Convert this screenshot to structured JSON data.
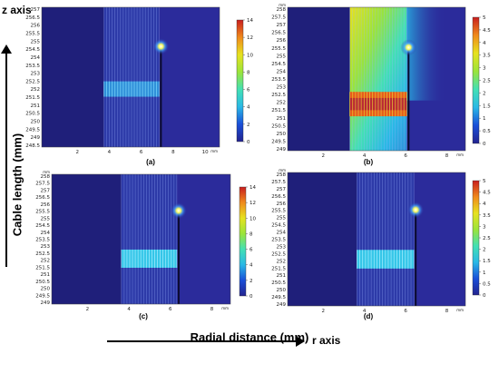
{
  "axes": {
    "z_axis_label": "z axis",
    "y_axis_label": "Cable length (mm)",
    "x_axis_label": "Radial distance (mm)",
    "r_axis_label": "r axis"
  },
  "colors": {
    "background": "#2b2b9b",
    "colormap": [
      "#23238f",
      "#1a4fd8",
      "#2ab8e6",
      "#43e0b4",
      "#9be43a",
      "#e6e21f",
      "#f08a1c",
      "#c81e1e"
    ]
  },
  "panels": [
    {
      "label": "(a)",
      "y_ticks": [
        "257",
        "256.5",
        "256",
        "255.5",
        "255",
        "254.5",
        "254",
        "253.5",
        "253",
        "252.5",
        "252",
        "251.5",
        "251",
        "250.5",
        "250",
        "249.5",
        "249",
        "248.5"
      ],
      "x_ticks": [
        "2",
        "4",
        "6",
        "8",
        "10"
      ],
      "x_unit": "mm",
      "y_unit": "",
      "colorbar_ticks": [
        "14",
        "12",
        "10",
        "8",
        "6",
        "4",
        "2",
        "0"
      ],
      "field": "slots-dim"
    },
    {
      "label": "(b)",
      "y_ticks": [
        "258",
        "257.5",
        "257",
        "256.5",
        "256",
        "255.5",
        "255",
        "254.5",
        "254",
        "253.5",
        "253",
        "252.5",
        "252",
        "251.5",
        "251",
        "250.5",
        "250",
        "249.5",
        "249"
      ],
      "x_ticks": [
        "2",
        "4",
        "6",
        "8"
      ],
      "x_unit": "mm",
      "y_unit": "mm",
      "colorbar_ticks": [
        "5",
        "4.5",
        "4",
        "3.5",
        "3",
        "2.5",
        "2",
        "1.5",
        "1",
        "0.5",
        "0"
      ],
      "field": "gradient"
    },
    {
      "label": "(c)",
      "y_ticks": [
        "258",
        "257.5",
        "257",
        "256.5",
        "256",
        "255.5",
        "255",
        "254.5",
        "254",
        "253.5",
        "253",
        "252.5",
        "252",
        "251.5",
        "251",
        "250.5",
        "250",
        "249.5",
        "249"
      ],
      "x_ticks": [
        "2",
        "4",
        "6",
        "8"
      ],
      "x_unit": "mm",
      "y_unit": "mm",
      "colorbar_ticks": [
        "14",
        "12",
        "10",
        "8",
        "6",
        "4",
        "2",
        "0"
      ],
      "field": "slots-cyan"
    },
    {
      "label": "(d)",
      "y_ticks": [
        "258",
        "257.5",
        "257",
        "256.5",
        "256",
        "255.5",
        "255",
        "254.5",
        "254",
        "253.5",
        "253",
        "252.5",
        "252",
        "251.5",
        "251",
        "250.5",
        "250",
        "249.5",
        "249"
      ],
      "x_ticks": [
        "2",
        "4",
        "6",
        "8"
      ],
      "x_unit": "mm",
      "y_unit": "mm",
      "colorbar_ticks": [
        "5",
        "4.5",
        "4",
        "3.5",
        "3",
        "2.5",
        "2",
        "1.5",
        "1",
        "0.5",
        "0"
      ],
      "field": "slots-cyan"
    }
  ]
}
